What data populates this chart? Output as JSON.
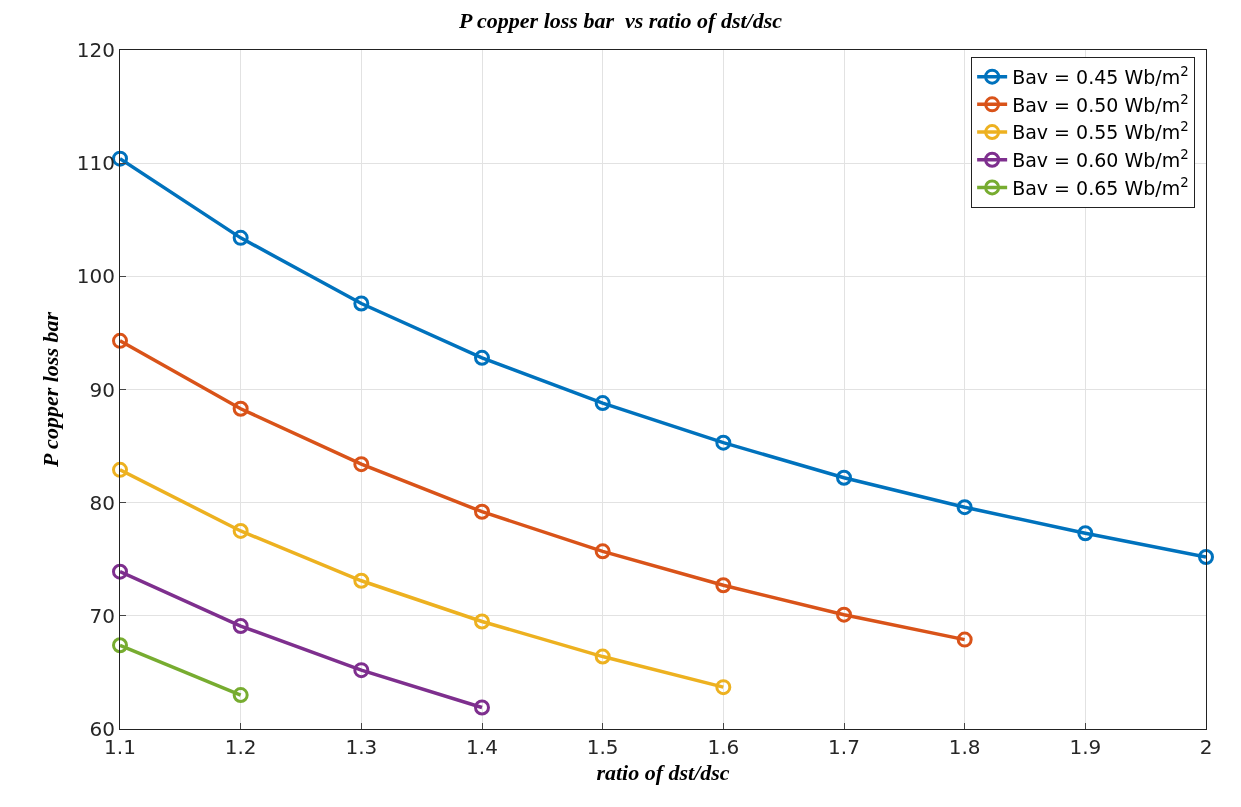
{
  "chart_data": {
    "type": "line",
    "title": "P copper loss bar  vs ratio of dst/dsc",
    "xlabel": "ratio of dst/dsc",
    "ylabel": "P copper loss bar",
    "x": [
      1.1,
      1.2,
      1.3,
      1.4,
      1.5,
      1.6,
      1.7,
      1.8,
      1.9,
      2.0
    ],
    "series": [
      {
        "name": "Bav = 0.45 Wb/m$^{2}$",
        "color": "#0072bd",
        "values": [
          110.4,
          103.4,
          97.6,
          92.8,
          88.8,
          85.3,
          82.2,
          79.6,
          77.3,
          75.2
        ]
      },
      {
        "name": "Bav = 0.50 Wb/m$^{2}$",
        "color": "#d95319",
        "values": [
          94.3,
          88.3,
          83.4,
          79.2,
          75.7,
          72.7,
          70.1,
          67.9,
          null,
          null
        ]
      },
      {
        "name": "Bav = 0.55 Wb/m$^{2}$",
        "color": "#edb120",
        "values": [
          82.9,
          77.5,
          73.1,
          69.5,
          66.4,
          63.7,
          null,
          null,
          null,
          null
        ]
      },
      {
        "name": "Bav = 0.60 Wb/m$^{2}$",
        "color": "#7e2f8e",
        "values": [
          73.9,
          69.1,
          65.2,
          61.9,
          null,
          null,
          null,
          null,
          null,
          null
        ]
      },
      {
        "name": "Bav = 0.65 Wb/m$^{2}$",
        "color": "#77ac30",
        "values": [
          67.4,
          63.0,
          null,
          null,
          null,
          null,
          null,
          null,
          null,
          null
        ]
      }
    ],
    "xlim": [
      1.1,
      2.0
    ],
    "xticks": [
      1.1,
      1.2,
      1.3,
      1.4,
      1.5,
      1.6,
      1.7,
      1.8,
      1.9,
      2
    ],
    "ylim": [
      60,
      120
    ],
    "yticks": [
      60,
      70,
      80,
      90,
      100,
      110,
      120
    ],
    "grid": true,
    "legend": "top right",
    "marker": "circle",
    "line_style": "solid"
  }
}
